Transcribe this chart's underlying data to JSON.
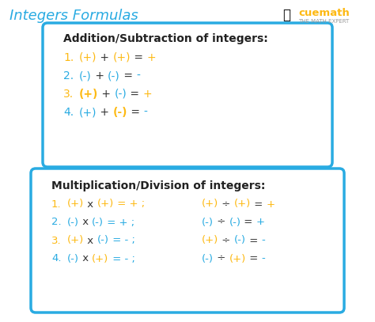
{
  "title": "Integers Formulas",
  "title_color": "#29ABE2",
  "bg_color": "#FFFFFF",
  "box_edge_color": "#29ABE2",
  "box_bg_color": "#FFFFFF",
  "add_box_title": "Addition/Subtraction of integers:",
  "mul_box_title": "Multiplication/Division of integers:",
  "add_rows": [
    {
      "num": "1.",
      "num_color": "#FDB913",
      "parts": [
        "(+)",
        " + ",
        "(+)",
        " = ",
        "+"
      ],
      "colors": [
        "#FDB913",
        "#333333",
        "#FDB913",
        "#333333",
        "#FDB913"
      ],
      "bolds": [
        false,
        false,
        false,
        false,
        false
      ]
    },
    {
      "num": "2.",
      "num_color": "#29ABE2",
      "parts": [
        "(-)",
        " + ",
        "(-)",
        " = ",
        "-"
      ],
      "colors": [
        "#29ABE2",
        "#333333",
        "#29ABE2",
        "#333333",
        "#29ABE2"
      ],
      "bolds": [
        false,
        false,
        false,
        false,
        false
      ]
    },
    {
      "num": "3.",
      "num_color": "#FDB913",
      "parts": [
        "(+)",
        " + ",
        "(-)",
        " = ",
        "+"
      ],
      "colors": [
        "#FDB913",
        "#333333",
        "#29ABE2",
        "#333333",
        "#FDB913"
      ],
      "bolds": [
        true,
        false,
        false,
        false,
        false
      ]
    },
    {
      "num": "4.",
      "num_color": "#29ABE2",
      "parts": [
        "(+)",
        " + ",
        "(-)",
        " = ",
        "-"
      ],
      "colors": [
        "#29ABE2",
        "#333333",
        "#FDB913",
        "#333333",
        "#29ABE2"
      ],
      "bolds": [
        false,
        false,
        true,
        false,
        false
      ]
    }
  ],
  "mul_rows": [
    {
      "num": "1.",
      "num_color": "#FDB913",
      "left": [
        "(+)",
        " x ",
        "(+)",
        " = + ;"
      ],
      "lcolors": [
        "#FDB913",
        "#333333",
        "#FDB913",
        "#FDB913"
      ],
      "right": [
        "(+)",
        " ÷ ",
        "(+)",
        " = ",
        "+"
      ],
      "rcolors": [
        "#FDB913",
        "#333333",
        "#FDB913",
        "#333333",
        "#FDB913"
      ]
    },
    {
      "num": "2.",
      "num_color": "#29ABE2",
      "left": [
        "(-)",
        " x ",
        "(-)",
        " = + ;"
      ],
      "lcolors": [
        "#29ABE2",
        "#333333",
        "#29ABE2",
        "#29ABE2"
      ],
      "right": [
        "(-)",
        " ÷ ",
        "(-)",
        " = ",
        "+"
      ],
      "rcolors": [
        "#29ABE2",
        "#333333",
        "#29ABE2",
        "#333333",
        "#29ABE2"
      ]
    },
    {
      "num": "3.",
      "num_color": "#FDB913",
      "left": [
        "(+)",
        " x ",
        "(-)",
        " = - ;"
      ],
      "lcolors": [
        "#FDB913",
        "#333333",
        "#29ABE2",
        "#29ABE2"
      ],
      "right": [
        "(+)",
        " ÷ ",
        "(-)",
        " = ",
        "-"
      ],
      "rcolors": [
        "#FDB913",
        "#333333",
        "#29ABE2",
        "#333333",
        "#29ABE2"
      ]
    },
    {
      "num": "4.",
      "num_color": "#29ABE2",
      "left": [
        "(-)",
        " x ",
        "(+)",
        " = - ;"
      ],
      "lcolors": [
        "#29ABE2",
        "#333333",
        "#FDB913",
        "#29ABE2"
      ],
      "right": [
        "(-)",
        " ÷ ",
        "(+)",
        " = ",
        "-"
      ],
      "rcolors": [
        "#29ABE2",
        "#333333",
        "#FDB913",
        "#333333",
        "#29ABE2"
      ]
    }
  ]
}
